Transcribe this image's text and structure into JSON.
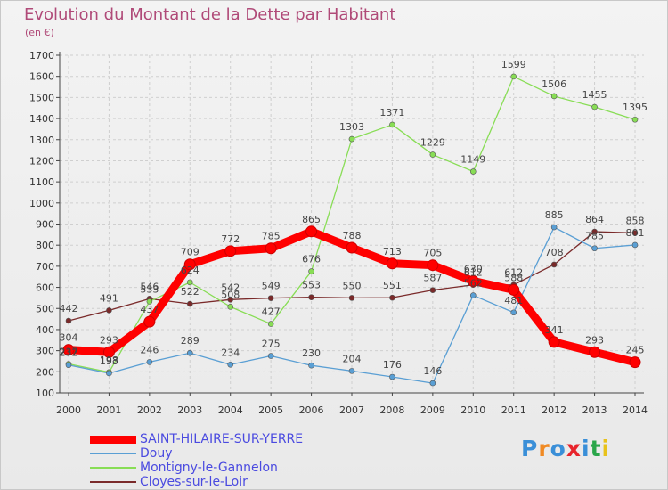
{
  "chart_data": {
    "type": "line",
    "title": "Evolution du Montant de la Dette par Habitant",
    "unit_label": "(en €)",
    "x": [
      2000,
      2001,
      2002,
      2003,
      2004,
      2005,
      2006,
      2007,
      2008,
      2009,
      2010,
      2011,
      2012,
      2013,
      2014
    ],
    "ylim": [
      100,
      1700
    ],
    "yticks": [
      100,
      200,
      300,
      400,
      500,
      600,
      700,
      800,
      900,
      1000,
      1100,
      1200,
      1300,
      1400,
      1500,
      1600,
      1700
    ],
    "grid": true,
    "legend_position": "bottom-left",
    "series": [
      {
        "name": "SAINT-HILAIRE-SUR-YERRE",
        "color": "#ff0000",
        "values": [
          304,
          293,
          437,
          709,
          772,
          785,
          865,
          788,
          713,
          705,
          630,
          588,
          341,
          293,
          245
        ],
        "labels": [
          "304",
          "293",
          "437",
          "709",
          "772",
          "785",
          "865",
          "788",
          "713",
          "705",
          "630",
          "588",
          "341",
          "293",
          "245"
        ]
      },
      {
        "name": "Douy",
        "color": "#5a9fd4",
        "values": [
          232,
          193,
          246,
          289,
          234,
          275,
          230,
          204,
          176,
          146,
          562,
          481,
          885,
          785,
          801
        ],
        "labels": [
          "232",
          "193",
          "246",
          "289",
          "234",
          "275",
          "230",
          "204",
          "176",
          "146",
          "562",
          "481",
          "885",
          "785",
          "801"
        ]
      },
      {
        "name": "Montigny-le-Gannelon",
        "color": "#88dd55",
        "values": [
          237,
          198,
          533,
          624,
          508,
          427,
          676,
          1303,
          1371,
          1229,
          1149,
          1599,
          1506,
          1455,
          1395
        ],
        "labels": [
          "237",
          "198",
          "533",
          "624",
          "508",
          "427",
          "676",
          "1303",
          "1371",
          "1229",
          "1149",
          "1599",
          "1506",
          "1455",
          "1395"
        ]
      },
      {
        "name": "Cloyes-sur-le-Loir",
        "color": "#7a2a2a",
        "values": [
          442,
          491,
          546,
          522,
          542,
          549,
          553,
          550,
          551,
          587,
          612,
          612,
          708,
          864,
          858
        ],
        "labels": [
          "442",
          "491",
          "546",
          "522",
          "542",
          "549",
          "553",
          "550",
          "551",
          "587",
          "612",
          "612",
          "708",
          "864",
          "858"
        ]
      }
    ]
  },
  "logo": {
    "text": "Proxiti",
    "letter_colors": [
      "#3a8fd8",
      "#f08a24",
      "#3a8fd8",
      "#e8242c",
      "#3a8fd8",
      "#2aa64a",
      "#e8c21a"
    ]
  }
}
